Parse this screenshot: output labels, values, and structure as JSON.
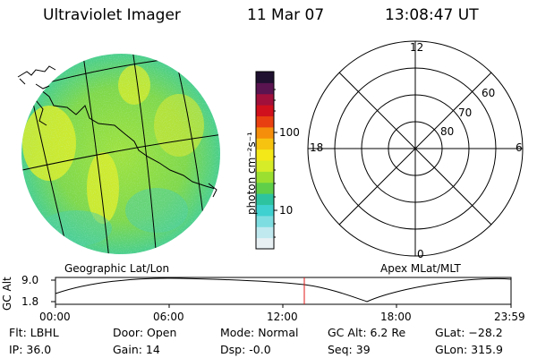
{
  "header": {
    "instrument": "Ultraviolet Imager",
    "date": "11 Mar 07",
    "time": "13:08:47 UT"
  },
  "left_map": {
    "caption": "Geographic Lat/Lon"
  },
  "colorbar": {
    "unit_label": "photon cm⁻²s⁻¹",
    "tick_100": "100",
    "tick_10": "10",
    "colors": [
      "#e8f0f4",
      "#bfe9ef",
      "#7edde0",
      "#3fd0d0",
      "#2ec3a0",
      "#5fcf4a",
      "#9be030",
      "#d6ec28",
      "#f4e818",
      "#f6c410",
      "#f58e0a",
      "#e84010",
      "#d0101c",
      "#a0103a",
      "#5a1450",
      "#201030"
    ]
  },
  "polar_grid": {
    "caption": "Apex MLat/MLT",
    "mlt_top": "12",
    "mlt_right": "6",
    "mlt_bottom": "0",
    "mlt_left": "18",
    "lat_60": "60",
    "lat_70": "70",
    "lat_80": "80"
  },
  "orbit_plot": {
    "ylabel": "GC Alt",
    "ytick_top": "9.0",
    "ytick_bottom": "1.8",
    "xticks": [
      "00:00",
      "06:00",
      "12:00",
      "18:00",
      "23:59"
    ]
  },
  "status": {
    "flt": "Flt: LBHL",
    "ip": "IP: 36.0",
    "door": "Door: Open",
    "gain": "Gain: 14",
    "mode": "Mode: Normal",
    "dsp": "Dsp:   -0.0",
    "gcalt": "GC Alt: 6.2 Re",
    "seq": "Seq: 39",
    "glat": "GLat: −28.2",
    "glon": "GLon: 315.9"
  }
}
